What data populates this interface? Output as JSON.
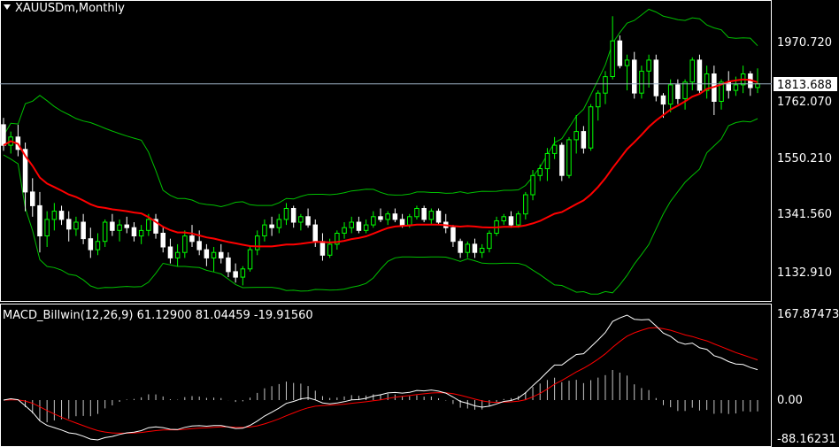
{
  "window": {
    "title": "XAUUSDm,Monthly",
    "dropdown_icon": "triangle-down-icon"
  },
  "colors": {
    "background": "#000000",
    "grid_border": "#ffffff",
    "bull_candle": "#00ff00",
    "bear_candle": "#ffffff",
    "bollinger": "#00c000",
    "moving_average": "#ff0000",
    "macd_line": "#ffffff",
    "signal_line": "#ff0000",
    "price_line": "#a0b4c8",
    "price_tag_bg": "#ffffff",
    "price_tag_fg": "#000000"
  },
  "price_panel": {
    "axis_labels": [
      "1970.720",
      "1762.070",
      "1550.210",
      "1341.560",
      "1132.910"
    ],
    "current_price": "1813.688"
  },
  "macd_panel": {
    "header": "MACD_Billwin(12,26,9) 61.12900 81.04459 -19.91560",
    "axis_labels": [
      "167.87473",
      "0.00",
      "-88.16231"
    ]
  },
  "chart_data": [
    {
      "type": "candlestick",
      "title": "XAUUSDm,Monthly",
      "ylim": [
        1060,
        2080
      ],
      "y_ticks": [
        1970.72,
        1762.07,
        1550.21,
        1341.56,
        1132.91
      ],
      "ohlc": [
        [
          1665,
          1690,
          1570,
          1590
        ],
        [
          1590,
          1640,
          1560,
          1620
        ],
        [
          1620,
          1665,
          1550,
          1575
        ],
        [
          1575,
          1600,
          1350,
          1420
        ],
        [
          1420,
          1470,
          1330,
          1370
        ],
        [
          1370,
          1420,
          1200,
          1260
        ],
        [
          1260,
          1350,
          1220,
          1320
        ],
        [
          1320,
          1380,
          1280,
          1350
        ],
        [
          1350,
          1370,
          1300,
          1320
        ],
        [
          1320,
          1350,
          1240,
          1285
        ],
        [
          1285,
          1330,
          1260,
          1310
        ],
        [
          1310,
          1340,
          1230,
          1250
        ],
        [
          1250,
          1290,
          1180,
          1210
        ],
        [
          1210,
          1270,
          1190,
          1240
        ],
        [
          1240,
          1320,
          1220,
          1310
        ],
        [
          1310,
          1340,
          1260,
          1280
        ],
        [
          1280,
          1320,
          1240,
          1300
        ],
        [
          1300,
          1330,
          1270,
          1290
        ],
        [
          1290,
          1310,
          1240,
          1260
        ],
        [
          1260,
          1300,
          1230,
          1280
        ],
        [
          1280,
          1340,
          1260,
          1320
        ],
        [
          1320,
          1340,
          1250,
          1270
        ],
        [
          1270,
          1290,
          1200,
          1220
        ],
        [
          1220,
          1250,
          1160,
          1180
        ],
        [
          1180,
          1230,
          1150,
          1200
        ],
        [
          1200,
          1280,
          1180,
          1260
        ],
        [
          1260,
          1300,
          1220,
          1240
        ],
        [
          1240,
          1280,
          1190,
          1210
        ],
        [
          1210,
          1230,
          1150,
          1180
        ],
        [
          1180,
          1220,
          1130,
          1200
        ],
        [
          1200,
          1230,
          1160,
          1180
        ],
        [
          1180,
          1200,
          1110,
          1130
        ],
        [
          1130,
          1160,
          1090,
          1110
        ],
        [
          1110,
          1150,
          1080,
          1140
        ],
        [
          1140,
          1220,
          1130,
          1210
        ],
        [
          1210,
          1280,
          1190,
          1260
        ],
        [
          1260,
          1320,
          1240,
          1300
        ],
        [
          1300,
          1330,
          1260,
          1290
        ],
        [
          1290,
          1340,
          1270,
          1320
        ],
        [
          1320,
          1380,
          1300,
          1360
        ],
        [
          1360,
          1370,
          1290,
          1310
        ],
        [
          1310,
          1340,
          1280,
          1330
        ],
        [
          1330,
          1360,
          1290,
          1300
        ],
        [
          1300,
          1320,
          1220,
          1240
        ],
        [
          1240,
          1270,
          1170,
          1190
        ],
        [
          1190,
          1250,
          1180,
          1230
        ],
        [
          1230,
          1280,
          1210,
          1270
        ],
        [
          1270,
          1310,
          1250,
          1290
        ],
        [
          1290,
          1330,
          1270,
          1310
        ],
        [
          1310,
          1330,
          1270,
          1280
        ],
        [
          1280,
          1320,
          1270,
          1300
        ],
        [
          1300,
          1350,
          1290,
          1330
        ],
        [
          1330,
          1360,
          1310,
          1320
        ],
        [
          1320,
          1350,
          1300,
          1340
        ],
        [
          1340,
          1360,
          1310,
          1320
        ],
        [
          1320,
          1340,
          1290,
          1300
        ],
        [
          1300,
          1340,
          1290,
          1330
        ],
        [
          1330,
          1370,
          1320,
          1360
        ],
        [
          1360,
          1370,
          1310,
          1320
        ],
        [
          1320,
          1360,
          1300,
          1350
        ],
        [
          1350,
          1360,
          1300,
          1310
        ],
        [
          1310,
          1340,
          1270,
          1290
        ],
        [
          1290,
          1300,
          1220,
          1240
        ],
        [
          1240,
          1250,
          1180,
          1200
        ],
        [
          1200,
          1240,
          1180,
          1230
        ],
        [
          1230,
          1250,
          1180,
          1200
        ],
        [
          1200,
          1230,
          1180,
          1215
        ],
        [
          1215,
          1280,
          1200,
          1270
        ],
        [
          1270,
          1330,
          1260,
          1315
        ],
        [
          1315,
          1340,
          1300,
          1330
        ],
        [
          1330,
          1350,
          1290,
          1300
        ],
        [
          1300,
          1350,
          1290,
          1340
        ],
        [
          1340,
          1420,
          1320,
          1410
        ],
        [
          1410,
          1500,
          1390,
          1480
        ],
        [
          1480,
          1520,
          1460,
          1505
        ],
        [
          1505,
          1580,
          1460,
          1560
        ],
        [
          1560,
          1620,
          1540,
          1590
        ],
        [
          1590,
          1600,
          1460,
          1480
        ],
        [
          1480,
          1620,
          1470,
          1610
        ],
        [
          1610,
          1700,
          1560,
          1640
        ],
        [
          1640,
          1660,
          1560,
          1580
        ],
        [
          1580,
          1740,
          1570,
          1730
        ],
        [
          1730,
          1790,
          1680,
          1780
        ],
        [
          1780,
          1860,
          1740,
          1840
        ],
        [
          1840,
          2060,
          1830,
          1970
        ],
        [
          1970,
          1990,
          1870,
          1880
        ],
        [
          1880,
          1920,
          1790,
          1900
        ],
        [
          1900,
          1930,
          1760,
          1780
        ],
        [
          1780,
          1880,
          1760,
          1860
        ],
        [
          1860,
          1920,
          1800,
          1900
        ],
        [
          1900,
          1920,
          1750,
          1770
        ],
        [
          1770,
          1780,
          1690,
          1740
        ],
        [
          1740,
          1830,
          1710,
          1810
        ],
        [
          1810,
          1830,
          1740,
          1760
        ],
        [
          1760,
          1830,
          1720,
          1820
        ],
        [
          1820,
          1910,
          1790,
          1900
        ],
        [
          1900,
          1920,
          1780,
          1790
        ],
        [
          1790,
          1880,
          1760,
          1850
        ],
        [
          1850,
          1880,
          1700,
          1750
        ],
        [
          1750,
          1830,
          1720,
          1820
        ],
        [
          1820,
          1860,
          1760,
          1790
        ],
        [
          1790,
          1840,
          1770,
          1810
        ],
        [
          1810,
          1880,
          1780,
          1850
        ],
        [
          1850,
          1860,
          1770,
          1800
        ],
        [
          1800,
          1870,
          1780,
          1814
        ]
      ]
    },
    {
      "type": "line",
      "title": "MACD_Billwin(12,26,9)",
      "ylim": [
        -100,
        180
      ],
      "y_ticks": [
        167.87473,
        0.0,
        -88.16231
      ]
    }
  ]
}
